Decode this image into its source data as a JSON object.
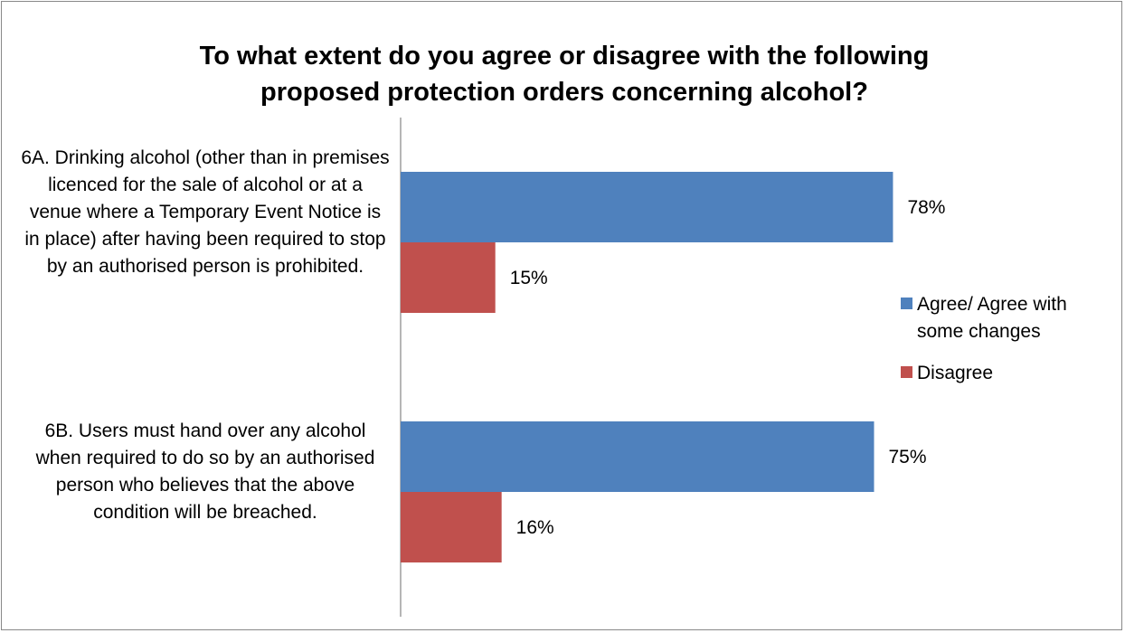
{
  "chart_data": {
    "type": "bar",
    "orientation": "horizontal",
    "title": "To what extent do you agree or disagree with the following proposed protection orders concerning alcohol?",
    "categories": [
      "6A. Drinking alcohol (other than in premises licenced for the sale of alcohol or at a venue where a Temporary Event Notice is in place) after having been required to stop by an authorised person is prohibited.",
      "6B. Users must hand over any alcohol when required to do so by an authorised person who believes that the above condition will be breached."
    ],
    "series": [
      {
        "name": "Agree/ Agree with some changes",
        "color": "#4f81bd",
        "values": [
          78,
          75
        ],
        "labels": [
          "78%",
          "75%"
        ]
      },
      {
        "name": "Disagree",
        "color": "#c0504d",
        "values": [
          15,
          16
        ],
        "labels": [
          "15%",
          "16%"
        ]
      }
    ],
    "unit": "%",
    "xlim": [
      0,
      100
    ],
    "legend_position": "right",
    "grid": false
  }
}
